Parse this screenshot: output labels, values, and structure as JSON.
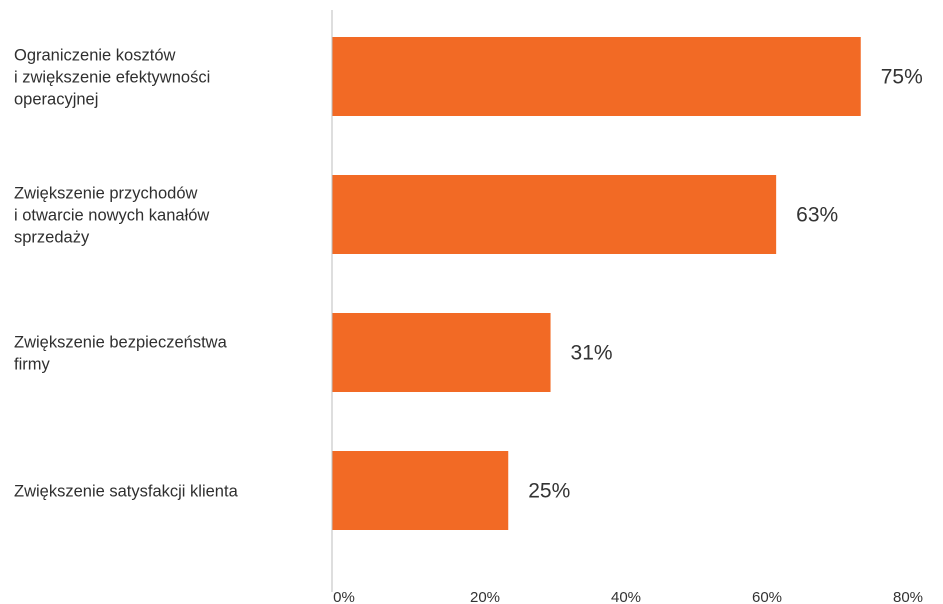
{
  "chart_data": {
    "type": "bar",
    "orientation": "horizontal",
    "categories": [
      [
        "Ograniczenie kosztów",
        "i zwiększenie efektywności",
        "operacyjnej"
      ],
      [
        "Zwiększenie przychodów",
        "i otwarcie nowych kanałów",
        "sprzedaży"
      ],
      [
        "Zwiększenie bezpieczeństwa",
        "firmy"
      ],
      [
        "Zwiększenie satysfakcji klienta"
      ]
    ],
    "values": [
      75,
      63,
      31,
      25
    ],
    "value_labels": [
      "75%",
      "63%",
      "31%",
      "25%"
    ],
    "xlim": [
      0,
      80
    ],
    "xticks": [
      0,
      20,
      40,
      60,
      80
    ],
    "xtick_labels": [
      "0%",
      "20%",
      "40%",
      "60%",
      "80%"
    ],
    "title": "",
    "xlabel": "",
    "ylabel": "",
    "grid": false,
    "legend": "none",
    "colors": {
      "bar": "#f26a25",
      "axis": "#bdbdbd",
      "text": "#333333"
    }
  }
}
